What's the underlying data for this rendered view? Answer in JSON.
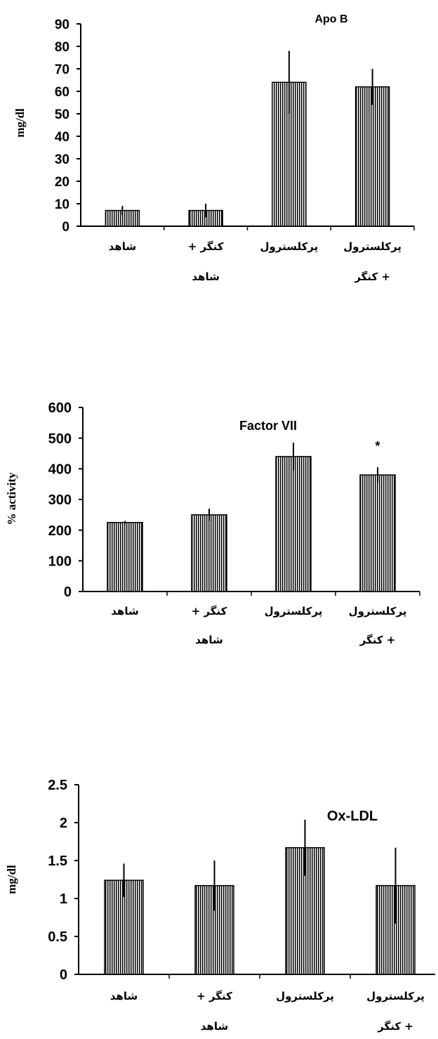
{
  "chart_data": [
    {
      "type": "bar",
      "title": "Apo B",
      "ylabel": "mg/dl",
      "xlabel": "",
      "ylim": [
        0,
        90
      ],
      "yticks": [
        "0",
        "10",
        "20",
        "30",
        "40",
        "50",
        "60",
        "70",
        "80",
        "90"
      ],
      "categories": [
        [
          "شاهد"
        ],
        [
          "کنگر +",
          "شاهد"
        ],
        [
          "پرکلسترول"
        ],
        [
          "پرکلسترول",
          "+ کنگر"
        ]
      ],
      "values": [
        7,
        7,
        64,
        62
      ],
      "errors": [
        2,
        3,
        14,
        8
      ],
      "annotations": [],
      "grid": false
    },
    {
      "type": "bar",
      "title": "Factor VII",
      "ylabel": "% activity",
      "xlabel": "",
      "ylim": [
        0,
        600
      ],
      "yticks": [
        "0",
        "100",
        "200",
        "300",
        "400",
        "500",
        "600"
      ],
      "categories": [
        [
          "شاهد"
        ],
        [
          "کنگر +",
          "شاهد"
        ],
        [
          "پرکلسترول"
        ],
        [
          "پرکلسترول",
          "+ کنگر"
        ]
      ],
      "values": [
        225,
        250,
        440,
        380
      ],
      "errors": [
        5,
        20,
        45,
        25
      ],
      "annotations": [
        "",
        "",
        "",
        "*"
      ],
      "grid": false
    },
    {
      "type": "bar",
      "title": "Ox-LDL",
      "ylabel": "mg/dl",
      "xlabel": "",
      "ylim": [
        0,
        2.5
      ],
      "yticks": [
        "0",
        "0.5",
        "1",
        "1.5",
        "2",
        "2.5"
      ],
      "categories": [
        [
          "شاهد"
        ],
        [
          "کنگر +",
          "شاهد"
        ],
        [
          "پرکلسترول"
        ],
        [
          "پرکلسترول",
          "+ کنگر"
        ]
      ],
      "values": [
        1.24,
        1.17,
        1.67,
        1.17
      ],
      "errors": [
        0.22,
        0.33,
        0.37,
        0.5
      ],
      "annotations": [],
      "grid": false
    }
  ]
}
